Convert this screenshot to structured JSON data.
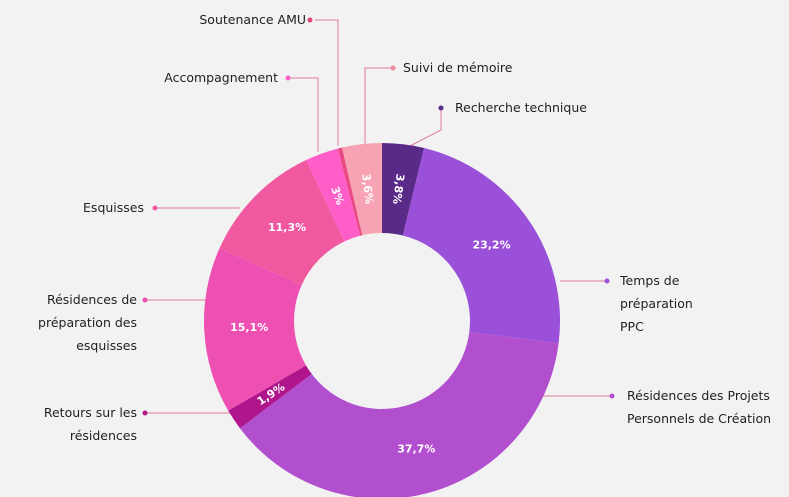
{
  "chart_data": {
    "type": "donut",
    "categories": [
      "Recherche technique",
      "Temps de préparation PPC",
      "Résidences des Projets Personnels de Création",
      "Retours sur les résidences",
      "Résidences de préparation des esquisses",
      "Esquisses",
      "Accompagnement",
      "Soutenance AMU",
      "Suivi de mémoire"
    ],
    "values": [
      3.8,
      23.2,
      37.7,
      1.9,
      15.1,
      11.3,
      3,
      0.4,
      3.6
    ],
    "value_labels": [
      "3,8%",
      "23,2%",
      "37,7%",
      "1,9%",
      "15,1%",
      "11,3%",
      "3%",
      null,
      "3,6%"
    ],
    "colors": [
      "#5a2a88",
      "#9a50d8",
      "#b14fce",
      "#b0168c",
      "#ee50b2",
      "#f0589f",
      "#ff5ec9",
      "#e94a84",
      "#f8a3b3"
    ]
  }
}
